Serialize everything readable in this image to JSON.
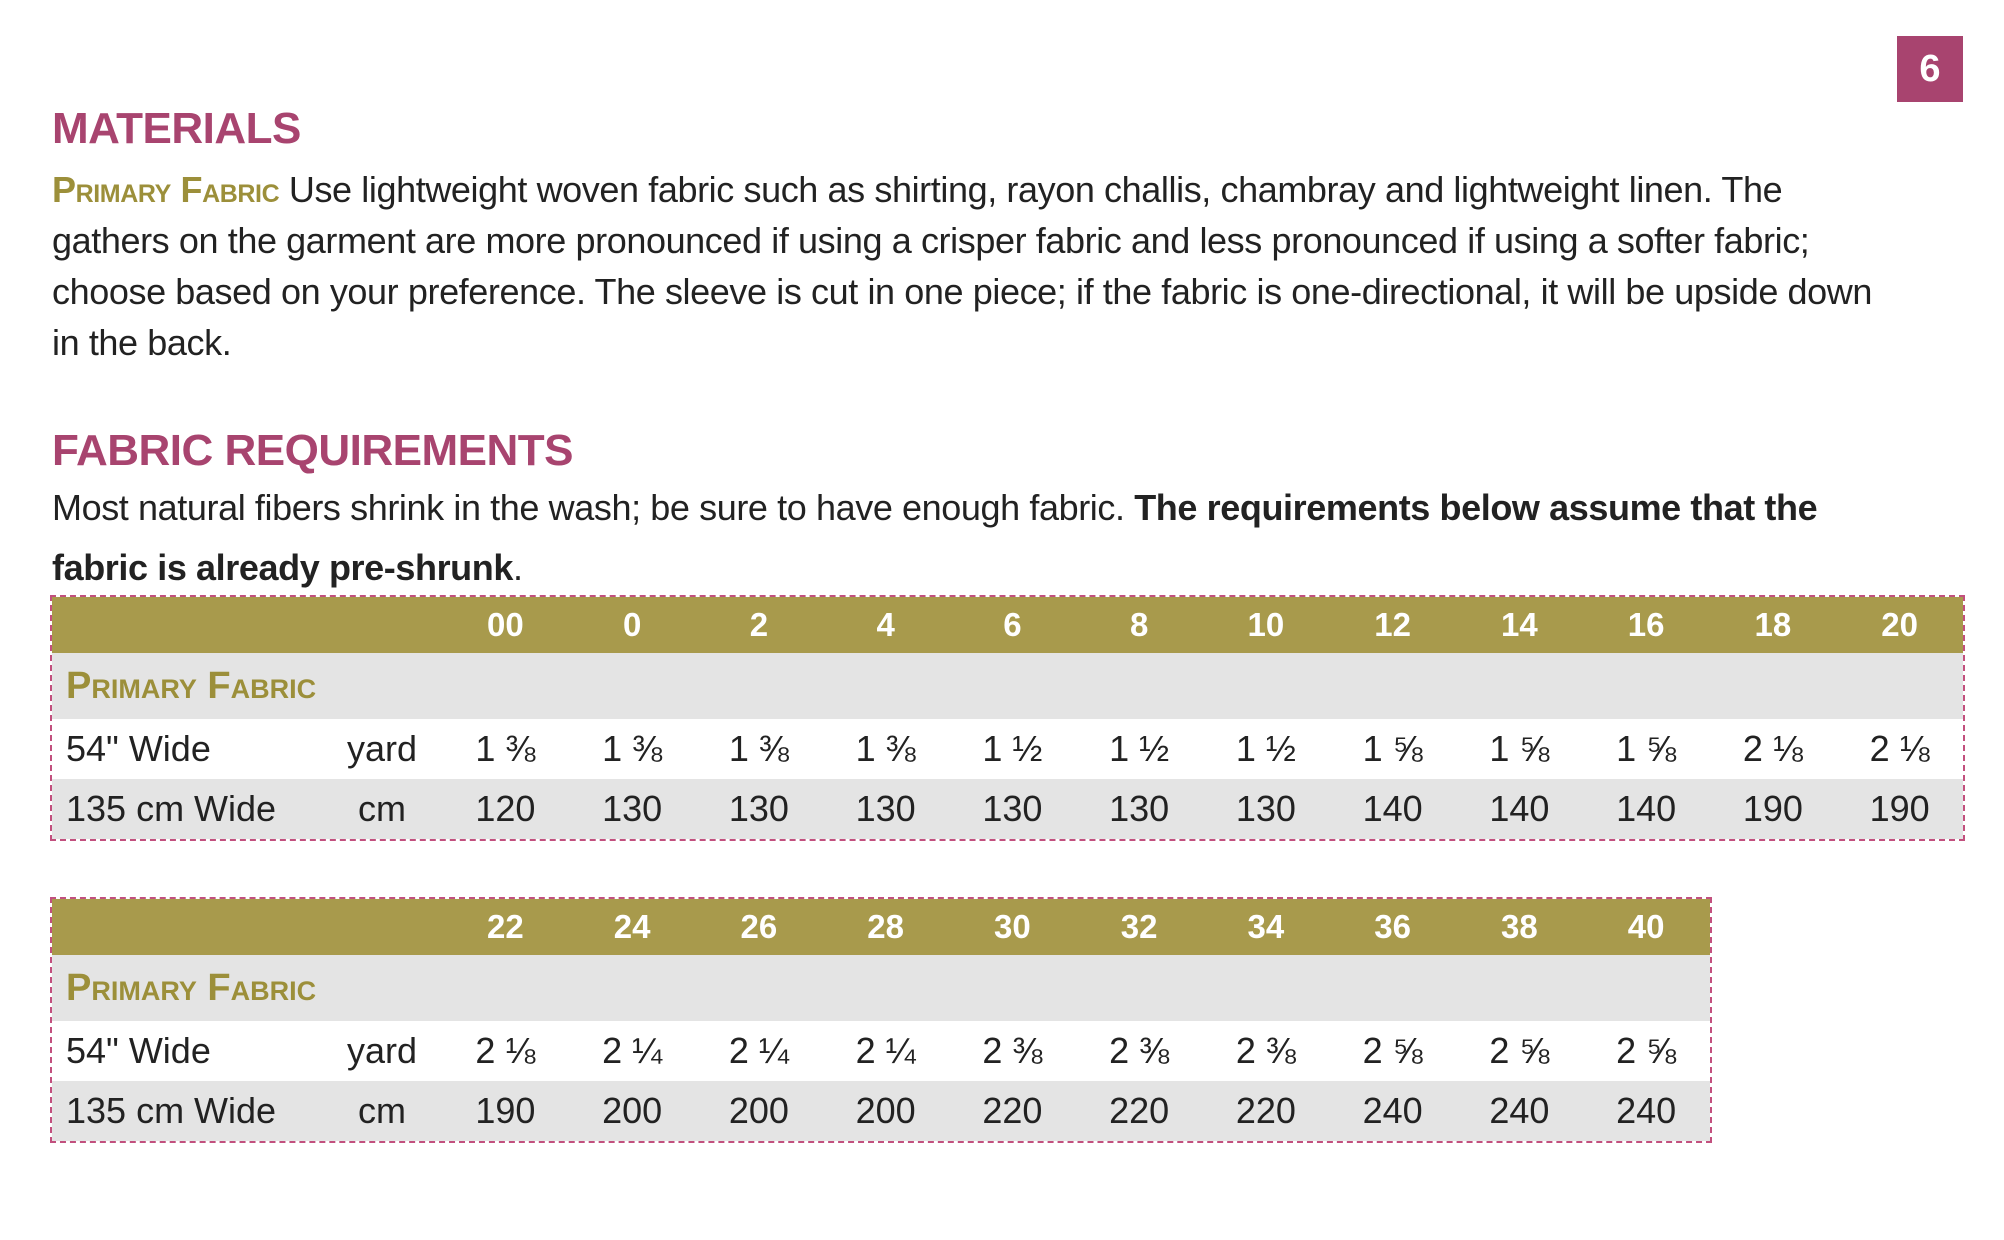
{
  "page_number": "6",
  "materials": {
    "heading": "MATERIALS",
    "lead": "Primary Fabric",
    "text": "Use lightweight woven fabric such as shirting, rayon challis, chambray and lightweight linen. The gathers on the garment are more pronounced if using a crisper fabric and less pronounced if using a softer fabric; choose based on your preference. The sleeve is cut in one piece; if the fabric is one-directional, it will be upside down in the back."
  },
  "fabric_requirements": {
    "heading": "FABRIC REQUIREMENTS",
    "text": "Most natural fibers shrink in the wash; be sure to have enough fabric.",
    "bold_text": "The requirements below assume that the fabric is already pre-shrunk",
    "end": "."
  },
  "tables": [
    {
      "sizes": [
        "00",
        "0",
        "2",
        "4",
        "6",
        "8",
        "10",
        "12",
        "14",
        "16",
        "18",
        "20"
      ],
      "section": "Primary Fabric",
      "rows": [
        {
          "label": "54\" Wide",
          "unit": "yard",
          "values": [
            "1 ⅜",
            "1 ⅜",
            "1 ⅜",
            "1 ⅜",
            "1 ½",
            "1 ½",
            "1 ½",
            "1 ⅝",
            "1 ⅝",
            "1 ⅝",
            "2 ⅛",
            "2 ⅛"
          ]
        },
        {
          "label": "135 cm Wide",
          "unit": "cm",
          "values": [
            "120",
            "130",
            "130",
            "130",
            "130",
            "130",
            "130",
            "140",
            "140",
            "140",
            "190",
            "190"
          ]
        }
      ]
    },
    {
      "sizes": [
        "22",
        "24",
        "26",
        "28",
        "30",
        "32",
        "34",
        "36",
        "38",
        "40"
      ],
      "section": "Primary Fabric",
      "rows": [
        {
          "label": "54\" Wide",
          "unit": "yard",
          "values": [
            "2 ⅛",
            "2 ¼",
            "2 ¼",
            "2 ¼",
            "2 ⅜",
            "2 ⅜",
            "2 ⅜",
            "2 ⅝",
            "2 ⅝",
            "2 ⅝"
          ]
        },
        {
          "label": "135 cm Wide",
          "unit": "cm",
          "values": [
            "190",
            "200",
            "200",
            "200",
            "220",
            "220",
            "220",
            "240",
            "240",
            "240"
          ]
        }
      ]
    }
  ]
}
